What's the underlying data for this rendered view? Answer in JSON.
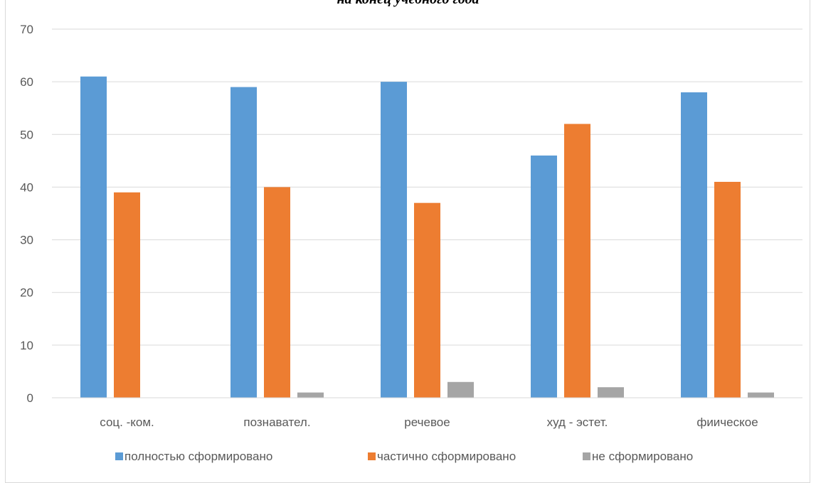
{
  "chart_data": {
    "type": "bar",
    "title": "на конец учебного года",
    "categories": [
      "соц. -ком.",
      "познавател.",
      "речевое",
      "худ - эстет.",
      "фиическое"
    ],
    "series": [
      {
        "name": "полностью сформировано",
        "values": [
          61,
          59,
          60,
          46,
          58
        ],
        "color": "#5b9bd5"
      },
      {
        "name": "частично сформировано",
        "values": [
          39,
          40,
          37,
          52,
          41
        ],
        "color": "#ed7d31"
      },
      {
        "name": "не сформировано",
        "values": [
          0,
          1,
          3,
          2,
          1
        ],
        "color": "#a5a5a5"
      }
    ],
    "ylim": [
      0,
      70
    ],
    "yticks": [
      "0",
      "10",
      "20",
      "30",
      "40",
      "50",
      "60",
      "70"
    ],
    "grid": true,
    "legend_position": "bottom"
  }
}
